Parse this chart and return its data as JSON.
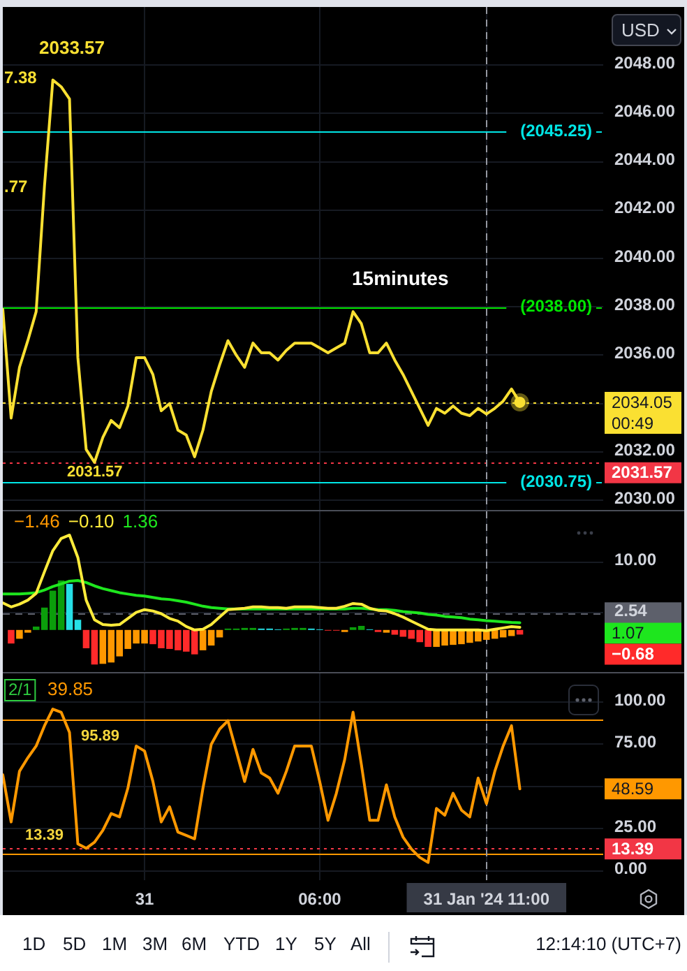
{
  "chart_data": [
    {
      "type": "line",
      "categories": [
        null,
        null,
        null,
        null,
        null,
        null,
        null,
        null,
        null,
        null,
        null,
        null,
        null,
        null,
        null,
        null,
        null,
        "31",
        null,
        null,
        null,
        null,
        null,
        null,
        null,
        null,
        null,
        null,
        null,
        null,
        null,
        null,
        null,
        null,
        null,
        null,
        null,
        null,
        "06:00",
        null,
        null,
        null,
        null,
        null,
        null,
        null,
        null,
        null,
        null,
        null,
        null,
        null,
        null,
        null,
        null,
        null,
        null,
        null,
        "31 Jan '24 11:00",
        null,
        null,
        null,
        null,
        null,
        null,
        null,
        null,
        null,
        null,
        null,
        null,
        null,
        null
      ],
      "series": [
        {
          "color": "#fae032",
          "values": [
            2037.9,
            2033.4,
            2035.5,
            2036.6,
            2037.8,
            2043.0,
            2047.38,
            2047.1,
            2046.6,
            2035.9,
            2032.1,
            2031.57,
            2032.6,
            2033.3,
            2033.0,
            2033.9,
            2035.9,
            2035.9,
            2035.2,
            2033.7,
            2034.0,
            2032.9,
            2032.7,
            2031.8,
            2032.9,
            2034.5,
            2035.6,
            2036.6,
            2036.0,
            2035.5,
            2036.5,
            2036.1,
            2036.1,
            2035.8,
            2036.2,
            2036.5,
            2036.5,
            2036.5,
            2036.3,
            2036.1,
            2036.3,
            2036.5,
            2037.8,
            2037.3,
            2036.1,
            2036.1,
            2036.5,
            2035.8,
            2035.2,
            2034.5,
            2033.8,
            2033.1,
            2033.8,
            2033.6,
            2033.9,
            2033.6,
            2033.5,
            2033.8,
            2033.57,
            2033.8,
            2034.1,
            2034.6,
            2034.05,
            null,
            null,
            null,
            null,
            null,
            null,
            null,
            null,
            null,
            null
          ]
        },
        {
          "type": "scatter",
          "color": "#fae032",
          "values": [
            null,
            null,
            null,
            null,
            null,
            null,
            null,
            null,
            null,
            null,
            null,
            null,
            null,
            null,
            null,
            null,
            null,
            null,
            null,
            null,
            null,
            null,
            null,
            null,
            null,
            null,
            null,
            null,
            null,
            null,
            null,
            null,
            null,
            null,
            null,
            null,
            null,
            null,
            null,
            null,
            null,
            null,
            null,
            null,
            null,
            null,
            null,
            null,
            null,
            null,
            null,
            null,
            null,
            null,
            null,
            null,
            null,
            null,
            null,
            null,
            null,
            null,
            2034.05,
            null,
            null,
            null,
            null,
            null,
            null,
            null,
            null,
            null,
            null
          ]
        }
      ],
      "ylim": [
        2029.6,
        2050.4
      ],
      "yticks": [
        {
          "value": 2030,
          "label": "2030.00"
        },
        {
          "value": 2032,
          "label": "2032.00"
        },
        {
          "value": 2034,
          "label": null
        },
        {
          "value": 2036,
          "label": "2036.00"
        },
        {
          "value": 2038,
          "label": "2038.00"
        },
        {
          "value": 2040,
          "label": "2040.00"
        },
        {
          "value": 2042,
          "label": "2042.00"
        },
        {
          "value": 2044,
          "label": "2044.00"
        },
        {
          "value": 2046,
          "label": "2046.00"
        },
        {
          "value": 2048,
          "label": "2048.00"
        }
      ],
      "grid": true,
      "tick_labels": "y",
      "ref_lines": [
        {
          "axis": "y",
          "value": 2045.25,
          "label": "(2045.25)",
          "color": "#00e6e6"
        },
        {
          "axis": "y",
          "value": 2038,
          "label": "(2038.00)",
          "color": "#00e600"
        },
        {
          "axis": "y",
          "value": 2030.75,
          "label": "(2030.75)",
          "color": "#00e6e6"
        },
        {
          "axis": "y",
          "value": 2034.05,
          "label": "2034.05",
          "color": "#fae032",
          "line_style": "dotted"
        },
        {
          "axis": "y",
          "value": 2031.57,
          "label": "2031.57",
          "color": "#f23645",
          "line_style": "dotted"
        },
        {
          "axis": "x",
          "value": "31 Jan '24 11:00",
          "color": "#9598a1",
          "line_style": "dashed"
        }
      ],
      "annotations": [
        "2033.57",
        "7.38",
        ".77",
        "2031.57",
        "15minutes",
        "00:49",
        "USD"
      ]
    },
    {
      "type": "bar",
      "categories": [
        null,
        null,
        null,
        null,
        null,
        null,
        null,
        null,
        null,
        null,
        null,
        null,
        null,
        null,
        null,
        null,
        null,
        "31",
        null,
        null,
        null,
        null,
        null,
        null,
        null,
        null,
        null,
        null,
        null,
        null,
        null,
        null,
        null,
        null,
        null,
        null,
        null,
        null,
        "06:00",
        null,
        null,
        null,
        null,
        null,
        null,
        null,
        null,
        null,
        null,
        null,
        null,
        null,
        null,
        null,
        null,
        null,
        null,
        null,
        "31 Jan '24 11:00",
        null,
        null,
        null,
        null,
        null,
        null,
        null,
        null,
        null,
        null,
        null,
        null,
        null,
        null
      ],
      "series": [
        {
          "type": "bar",
          "colors": [
            "#ff2a2a",
            "#ff2a2a",
            "#ff9800",
            "#ff9800",
            "#0b9e0b",
            "#0b9e0b",
            "#0b9e0b",
            "#0b9e0b",
            "#26e0e6",
            "#26e0e6",
            "#ff2a2a",
            "#ff2a2a",
            "#ff9800",
            "#ff9800",
            "#ff9800",
            "#ff9800",
            "#ff9800",
            "#ff9800",
            "#ff2a2a",
            "#ff2a2a",
            "#ff2a2a",
            "#ff2a2a",
            "#ff2a2a",
            "#ff2a2a",
            "#ff9800",
            "#ff9800",
            "#ff9800",
            "#0b9e0b",
            "#0b9e0b",
            "#0b9e0b",
            "#0b9e0b",
            "#26e0e6",
            "#26e0e6",
            "#26e0e6",
            "#0b9e0b",
            "#0b9e0b",
            "#0b9e0b",
            "#26e0e6",
            "#26e0e6",
            "#ff2a2a",
            "#ff2a2a",
            "#ff9800",
            "#0b9e0b",
            "#0b9e0b",
            "#26e0e6",
            "#ff2a2a",
            "#ff9800",
            "#ff2a2a",
            "#ff2a2a",
            "#ff2a2a",
            "#ff2a2a",
            "#ff2a2a",
            "#ff9800",
            "#ff9800",
            "#ff9800",
            "#ff9800",
            "#ff9800",
            "#ff9800",
            "#ff9800",
            "#ff9800",
            "#ff9800",
            "#ff9800",
            "#ff2a2a",
            "#ff2a2a",
            "#ff2a2a",
            "#ff2a2a",
            "#ff2a2a",
            "#ff2a2a",
            "#ff2a2a",
            "#ff2a2a",
            "#ff2a2a",
            "#ff2a2a",
            "#ff2a2a"
          ],
          "values": [
            null,
            -2.0,
            -1.3,
            -0.4,
            0.5,
            3.3,
            5.8,
            7.3,
            6.8,
            1.5,
            -2.7,
            -5.1,
            -5.0,
            -4.8,
            -3.9,
            -2.8,
            -2.0,
            -2.0,
            -2.1,
            -2.7,
            -2.8,
            -3.0,
            -3.2,
            -3.6,
            -3.0,
            -2.3,
            -1.1,
            0.2,
            0.2,
            0.3,
            0.3,
            0.2,
            0.2,
            0.1,
            0.2,
            0.3,
            0.3,
            0.2,
            0.1,
            -0.1,
            -0.1,
            -0.3,
            0.4,
            0.6,
            0.1,
            -0.3,
            -0.4,
            -0.7,
            -1.0,
            -1.3,
            -1.8,
            -2.5,
            -2.5,
            -2.3,
            -2.2,
            -2.1,
            -1.9,
            -1.7,
            -1.46,
            -1.3,
            -1.1,
            -0.9,
            -0.68,
            null,
            null,
            null,
            null,
            null,
            null,
            null,
            null,
            null,
            null
          ]
        },
        {
          "type": "line",
          "color": "#ffeb3b",
          "values": [
            4.0,
            3.4,
            3.8,
            4.4,
            5.4,
            8.6,
            11.7,
            13.5,
            14.0,
            10.7,
            4.4,
            1.5,
            0.8,
            0.7,
            0.8,
            1.7,
            2.6,
            3.0,
            2.8,
            2.4,
            1.7,
            1.3,
            0.5,
            0.0,
            0.1,
            0.8,
            1.9,
            3.0,
            3.1,
            3.2,
            3.4,
            3.4,
            3.3,
            3.3,
            3.2,
            3.4,
            3.4,
            3.4,
            3.3,
            3.2,
            3.2,
            3.5,
            3.9,
            3.8,
            3.2,
            2.9,
            2.8,
            2.4,
            1.9,
            1.3,
            0.7,
            0.1,
            0.0,
            0.0,
            0.0,
            0.0,
            0.0,
            0.0,
            -0.1,
            0.1,
            0.3,
            0.5,
            0.4,
            null,
            null,
            null,
            null,
            null,
            null,
            null,
            null,
            null,
            null
          ]
        },
        {
          "type": "line",
          "color": "#1ee61e",
          "values": [
            5.3,
            5.3,
            5.3,
            5.4,
            5.5,
            5.9,
            6.4,
            6.8,
            7.2,
            7.3,
            7.0,
            6.5,
            6.1,
            5.8,
            5.5,
            5.3,
            5.1,
            5.0,
            4.8,
            4.6,
            4.5,
            4.3,
            4.1,
            3.8,
            3.5,
            3.3,
            3.2,
            3.1,
            3.1,
            3.1,
            3.1,
            3.1,
            3.1,
            3.1,
            3.1,
            3.1,
            3.1,
            3.1,
            3.1,
            3.1,
            3.1,
            3.1,
            3.2,
            3.2,
            3.1,
            3.0,
            3.0,
            2.9,
            2.7,
            2.6,
            2.5,
            2.3,
            2.2,
            2.0,
            1.9,
            1.8,
            1.6,
            1.5,
            1.36,
            1.3,
            1.2,
            1.1,
            1.07,
            null,
            null,
            null,
            null,
            null,
            null,
            null,
            null,
            null,
            null
          ]
        }
      ],
      "ylim": [
        -6,
        17.5
      ],
      "yticks": [
        {
          "value": 2.54,
          "label": "2.54"
        },
        {
          "value": 10,
          "label": "10.00"
        }
      ],
      "grid": true,
      "tick_labels": "y",
      "ref_lines": [
        {
          "axis": "y",
          "value": 2.54,
          "color": "#5d606b",
          "line_style": "dashed"
        },
        {
          "axis": "x",
          "value": "31 Jan '24 11:00",
          "color": "#9598a1",
          "line_style": "dashed"
        }
      ],
      "annotations": [
        "−1.46",
        "−0.10",
        "1.36",
        "1.07",
        "−0.68"
      ]
    },
    {
      "type": "line",
      "categories": [
        null,
        null,
        null,
        null,
        null,
        null,
        null,
        null,
        null,
        null,
        null,
        null,
        null,
        null,
        null,
        null,
        null,
        "31",
        null,
        null,
        null,
        null,
        null,
        null,
        null,
        null,
        null,
        null,
        null,
        null,
        null,
        null,
        null,
        null,
        null,
        null,
        null,
        null,
        "06:00",
        null,
        null,
        null,
        null,
        null,
        null,
        null,
        null,
        null,
        null,
        null,
        null,
        null,
        null,
        null,
        null,
        null,
        null,
        null,
        "31 Jan '24 11:00",
        null,
        null,
        null,
        null,
        null,
        null,
        null,
        null,
        null,
        null,
        null,
        null,
        null,
        null
      ],
      "series": [
        {
          "color": "#ff9800",
          "values": [
            57,
            29,
            59,
            67,
            74,
            86,
            95.89,
            94,
            82,
            16,
            13.39,
            17,
            24,
            34,
            32,
            49,
            74,
            71,
            53,
            29,
            38,
            23,
            21,
            19,
            49,
            75,
            84,
            89,
            71,
            53,
            72,
            58,
            55,
            46,
            59,
            74,
            74,
            74,
            53,
            30,
            46,
            66,
            94,
            63,
            30,
            30,
            51,
            32,
            20,
            13,
            8,
            5,
            37,
            33,
            46,
            36,
            32,
            55,
            39.85,
            59,
            74,
            86,
            48.59,
            null,
            null,
            null,
            null,
            null,
            null,
            null,
            null,
            null,
            null
          ]
        }
      ],
      "ylim": [
        -5.5,
        117
      ],
      "yticks": [
        {
          "value": 0,
          "label": "0.00"
        },
        {
          "value": 25,
          "label": "25.00"
        },
        {
          "value": 50,
          "label": null
        },
        {
          "value": 75,
          "label": "75.00"
        },
        {
          "value": 100,
          "label": "100.00"
        }
      ],
      "grid": true,
      "ref_lines": [
        {
          "axis": "y",
          "value": 90,
          "color": "#ff9800"
        },
        {
          "axis": "y",
          "value": 10,
          "color": "#ff9800"
        },
        {
          "axis": "y",
          "value": 13.39,
          "label": "13.39",
          "color": "#f23645",
          "line_style": "dotted"
        },
        {
          "axis": "x",
          "value": "31 Jan '24 11:00",
          "color": "#9598a1",
          "line_style": "dashed"
        }
      ],
      "annotations": [
        "2/1",
        "39.85",
        "95.89",
        "13.39",
        "48.59",
        "1D",
        "5D",
        "1M",
        "3M",
        "6M",
        "YTD",
        "1Y",
        "5Y",
        "All",
        "12:14:10 (UTC+7)"
      ]
    }
  ]
}
